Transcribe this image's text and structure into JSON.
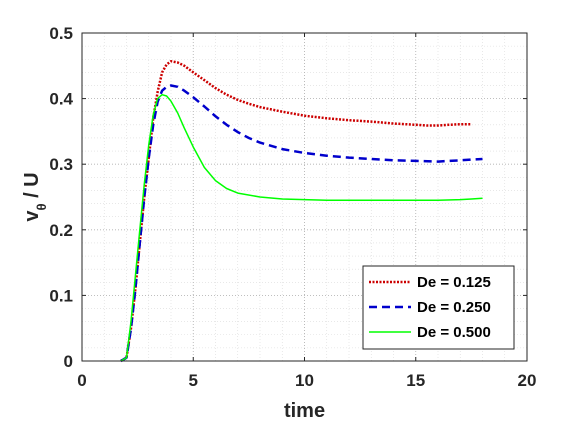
{
  "chart_data": {
    "type": "line",
    "xlabel": "time",
    "ylabel": {
      "main": "v",
      "sub": "θ",
      "rest": " / U"
    },
    "xlim": [
      0,
      20
    ],
    "ylim": [
      0,
      0.5
    ],
    "xticks": [
      0,
      5,
      10,
      15,
      20
    ],
    "yticks": [
      0,
      0.1,
      0.2,
      0.3,
      0.4,
      0.5
    ],
    "xtick_labels": [
      "0",
      "5",
      "10",
      "15",
      "20"
    ],
    "ytick_labels": [
      "0",
      "0.1",
      "0.2",
      "0.3",
      "0.4",
      "0.5"
    ],
    "grid": "major and minor, dotted",
    "legend_position": "bottom-right",
    "series": [
      {
        "name": "De = 0.125",
        "color": "#cc0000",
        "linestyle": "dotted",
        "x": [
          1.75,
          2.0,
          2.2,
          2.4,
          2.6,
          2.8,
          3.0,
          3.2,
          3.4,
          3.6,
          3.8,
          4.0,
          4.3,
          4.6,
          5.0,
          5.5,
          6.0,
          6.5,
          7.0,
          7.5,
          8.0,
          9.0,
          10.0,
          11.0,
          12.0,
          13.0,
          14.0,
          15.0,
          15.5,
          16.0,
          16.5,
          17.0,
          17.5
        ],
        "y": [
          0.0,
          0.005,
          0.05,
          0.11,
          0.18,
          0.25,
          0.31,
          0.37,
          0.41,
          0.44,
          0.452,
          0.457,
          0.455,
          0.45,
          0.44,
          0.428,
          0.416,
          0.406,
          0.398,
          0.392,
          0.387,
          0.38,
          0.374,
          0.37,
          0.367,
          0.365,
          0.362,
          0.36,
          0.359,
          0.359,
          0.36,
          0.361,
          0.361
        ]
      },
      {
        "name": "De = 0.250",
        "color": "#0000cc",
        "linestyle": "dashed",
        "x": [
          1.75,
          2.0,
          2.2,
          2.4,
          2.6,
          2.8,
          3.0,
          3.2,
          3.4,
          3.6,
          3.8,
          4.0,
          4.3,
          4.6,
          5.0,
          5.5,
          6.0,
          6.5,
          7.0,
          7.5,
          8.0,
          9.0,
          10.0,
          11.0,
          12.0,
          13.0,
          14.0,
          15.0,
          16.0,
          16.5,
          17.0,
          17.5,
          18.0
        ],
        "y": [
          0.0,
          0.005,
          0.05,
          0.11,
          0.18,
          0.25,
          0.31,
          0.36,
          0.395,
          0.412,
          0.418,
          0.42,
          0.418,
          0.412,
          0.402,
          0.388,
          0.373,
          0.36,
          0.349,
          0.34,
          0.333,
          0.323,
          0.317,
          0.313,
          0.31,
          0.308,
          0.306,
          0.305,
          0.304,
          0.305,
          0.306,
          0.307,
          0.308
        ]
      },
      {
        "name": "De = 0.500",
        "color": "#00ff00",
        "linestyle": "solid",
        "x": [
          1.75,
          2.0,
          2.2,
          2.4,
          2.6,
          2.8,
          3.0,
          3.2,
          3.4,
          3.6,
          3.8,
          4.0,
          4.3,
          4.6,
          5.0,
          5.5,
          6.0,
          6.5,
          7.0,
          8.0,
          9.0,
          10.0,
          11.0,
          12.0,
          13.0,
          14.0,
          15.0,
          16.0,
          17.0,
          17.5,
          18.0
        ],
        "y": [
          0.0,
          0.005,
          0.06,
          0.13,
          0.2,
          0.27,
          0.33,
          0.375,
          0.4,
          0.406,
          0.404,
          0.396,
          0.378,
          0.355,
          0.326,
          0.295,
          0.275,
          0.263,
          0.256,
          0.25,
          0.247,
          0.246,
          0.245,
          0.245,
          0.245,
          0.245,
          0.245,
          0.245,
          0.246,
          0.247,
          0.248
        ]
      }
    ]
  }
}
